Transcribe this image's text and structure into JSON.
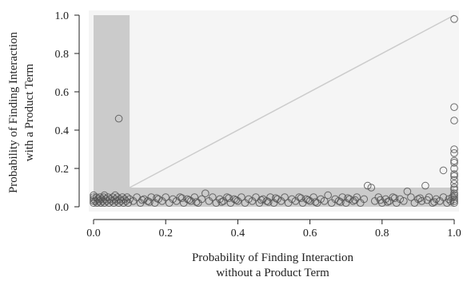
{
  "chart_data": {
    "type": "scatter",
    "xlabel_lines": [
      "Probability of Finding Interaction",
      "without a Product Term"
    ],
    "ylabel_lines": [
      "Probability of Finding Interaction",
      "with a Product Term"
    ],
    "xlim": [
      0,
      1
    ],
    "ylim": [
      0,
      1
    ],
    "x_ticks": [
      0.0,
      0.2,
      0.4,
      0.6,
      0.8,
      1.0
    ],
    "y_ticks": [
      0.0,
      0.2,
      0.4,
      0.6,
      0.8,
      1.0
    ],
    "x_tick_labels": [
      "0.0",
      "0.2",
      "0.4",
      "0.6",
      "0.8",
      "1.0"
    ],
    "y_tick_labels": [
      "0.0",
      "0.2",
      "0.4",
      "0.6",
      "0.8",
      "1.0"
    ],
    "grid": false,
    "shaded_regions": [
      {
        "x": [
          0,
          0.1
        ],
        "y": [
          0,
          1
        ]
      },
      {
        "x": [
          0,
          1
        ],
        "y": [
          0,
          0.1
        ]
      }
    ],
    "reference_line": {
      "from": [
        0.1,
        0.1
      ],
      "to": [
        1.0,
        1.0
      ]
    },
    "colors": {
      "points": "#555555",
      "shading": "#cbcbcb",
      "reference_line": "#cccccc",
      "axis": "#222222"
    },
    "points": [
      [
        0.07,
        0.46
      ],
      [
        1.0,
        0.98
      ],
      [
        1.0,
        0.52
      ],
      [
        1.0,
        0.45
      ],
      [
        1.0,
        0.3
      ],
      [
        1.0,
        0.28
      ],
      [
        1.0,
        0.24
      ],
      [
        1.0,
        0.23
      ],
      [
        1.0,
        0.2
      ],
      [
        1.0,
        0.17
      ],
      [
        1.0,
        0.16
      ],
      [
        1.0,
        0.14
      ],
      [
        1.0,
        0.12
      ],
      [
        1.0,
        0.1
      ],
      [
        1.0,
        0.09
      ],
      [
        0.97,
        0.19
      ],
      [
        0.92,
        0.11
      ],
      [
        0.87,
        0.08
      ],
      [
        0.76,
        0.11
      ],
      [
        0.77,
        0.1
      ],
      [
        0.65,
        0.06
      ],
      [
        0.31,
        0.07
      ],
      [
        0.06,
        0.06
      ],
      [
        0.03,
        0.06
      ],
      [
        0.0,
        0.02
      ],
      [
        0.0,
        0.03
      ],
      [
        0.0,
        0.04
      ],
      [
        0.0,
        0.05
      ],
      [
        0.0,
        0.06
      ],
      [
        0.005,
        0.03
      ],
      [
        0.008,
        0.05
      ],
      [
        0.01,
        0.02
      ],
      [
        0.012,
        0.04
      ],
      [
        0.015,
        0.03
      ],
      [
        0.018,
        0.05
      ],
      [
        0.02,
        0.02
      ],
      [
        0.022,
        0.04
      ],
      [
        0.025,
        0.03
      ],
      [
        0.028,
        0.05
      ],
      [
        0.03,
        0.02
      ],
      [
        0.033,
        0.04
      ],
      [
        0.036,
        0.03
      ],
      [
        0.04,
        0.05
      ],
      [
        0.043,
        0.02
      ],
      [
        0.046,
        0.04
      ],
      [
        0.05,
        0.03
      ],
      [
        0.053,
        0.05
      ],
      [
        0.056,
        0.02
      ],
      [
        0.06,
        0.04
      ],
      [
        0.063,
        0.03
      ],
      [
        0.066,
        0.05
      ],
      [
        0.07,
        0.02
      ],
      [
        0.073,
        0.04
      ],
      [
        0.076,
        0.03
      ],
      [
        0.08,
        0.05
      ],
      [
        0.083,
        0.02
      ],
      [
        0.086,
        0.04
      ],
      [
        0.09,
        0.03
      ],
      [
        0.093,
        0.05
      ],
      [
        0.096,
        0.02
      ],
      [
        0.1,
        0.04
      ],
      [
        0.11,
        0.03
      ],
      [
        0.12,
        0.05
      ],
      [
        0.13,
        0.02
      ],
      [
        0.14,
        0.04
      ],
      [
        0.15,
        0.03
      ],
      [
        0.16,
        0.05
      ],
      [
        0.17,
        0.02
      ],
      [
        0.18,
        0.04
      ],
      [
        0.19,
        0.03
      ],
      [
        0.2,
        0.05
      ],
      [
        0.21,
        0.02
      ],
      [
        0.22,
        0.04
      ],
      [
        0.23,
        0.03
      ],
      [
        0.24,
        0.05
      ],
      [
        0.25,
        0.02
      ],
      [
        0.26,
        0.04
      ],
      [
        0.27,
        0.03
      ],
      [
        0.28,
        0.05
      ],
      [
        0.29,
        0.02
      ],
      [
        0.3,
        0.04
      ],
      [
        0.32,
        0.03
      ],
      [
        0.33,
        0.05
      ],
      [
        0.34,
        0.02
      ],
      [
        0.35,
        0.04
      ],
      [
        0.36,
        0.03
      ],
      [
        0.37,
        0.05
      ],
      [
        0.38,
        0.02
      ],
      [
        0.39,
        0.04
      ],
      [
        0.4,
        0.03
      ],
      [
        0.41,
        0.05
      ],
      [
        0.42,
        0.02
      ],
      [
        0.43,
        0.04
      ],
      [
        0.44,
        0.03
      ],
      [
        0.45,
        0.05
      ],
      [
        0.46,
        0.02
      ],
      [
        0.47,
        0.04
      ],
      [
        0.48,
        0.03
      ],
      [
        0.49,
        0.05
      ],
      [
        0.5,
        0.02
      ],
      [
        0.51,
        0.04
      ],
      [
        0.52,
        0.03
      ],
      [
        0.53,
        0.05
      ],
      [
        0.54,
        0.02
      ],
      [
        0.55,
        0.04
      ],
      [
        0.56,
        0.03
      ],
      [
        0.57,
        0.05
      ],
      [
        0.58,
        0.02
      ],
      [
        0.59,
        0.04
      ],
      [
        0.6,
        0.03
      ],
      [
        0.61,
        0.05
      ],
      [
        0.62,
        0.02
      ],
      [
        0.63,
        0.04
      ],
      [
        0.64,
        0.03
      ],
      [
        0.66,
        0.02
      ],
      [
        0.67,
        0.04
      ],
      [
        0.68,
        0.03
      ],
      [
        0.69,
        0.05
      ],
      [
        0.7,
        0.02
      ],
      [
        0.71,
        0.04
      ],
      [
        0.72,
        0.03
      ],
      [
        0.73,
        0.05
      ],
      [
        0.74,
        0.02
      ],
      [
        0.75,
        0.04
      ],
      [
        0.78,
        0.03
      ],
      [
        0.79,
        0.05
      ],
      [
        0.8,
        0.02
      ],
      [
        0.81,
        0.04
      ],
      [
        0.82,
        0.03
      ],
      [
        0.83,
        0.05
      ],
      [
        0.84,
        0.02
      ],
      [
        0.85,
        0.04
      ],
      [
        0.86,
        0.03
      ],
      [
        0.88,
        0.05
      ],
      [
        0.89,
        0.02
      ],
      [
        0.9,
        0.04
      ],
      [
        0.91,
        0.03
      ],
      [
        0.93,
        0.05
      ],
      [
        0.94,
        0.02
      ],
      [
        0.95,
        0.04
      ],
      [
        0.96,
        0.03
      ],
      [
        0.97,
        0.05
      ],
      [
        0.98,
        0.02
      ],
      [
        0.985,
        0.04
      ],
      [
        0.99,
        0.03
      ],
      [
        0.995,
        0.05
      ],
      [
        1.0,
        0.02
      ],
      [
        1.0,
        0.03
      ],
      [
        1.0,
        0.04
      ],
      [
        1.0,
        0.05
      ],
      [
        1.0,
        0.06
      ],
      [
        1.0,
        0.07
      ],
      [
        0.135,
        0.035
      ],
      [
        0.245,
        0.045
      ],
      [
        0.355,
        0.025
      ],
      [
        0.465,
        0.035
      ],
      [
        0.575,
        0.045
      ],
      [
        0.685,
        0.025
      ],
      [
        0.795,
        0.035
      ],
      [
        0.905,
        0.045
      ],
      [
        0.155,
        0.025
      ],
      [
        0.265,
        0.035
      ],
      [
        0.375,
        0.045
      ],
      [
        0.485,
        0.025
      ],
      [
        0.595,
        0.035
      ],
      [
        0.705,
        0.045
      ],
      [
        0.815,
        0.025
      ],
      [
        0.925,
        0.035
      ],
      [
        0.175,
        0.045
      ],
      [
        0.285,
        0.025
      ],
      [
        0.395,
        0.035
      ],
      [
        0.505,
        0.045
      ],
      [
        0.615,
        0.025
      ],
      [
        0.725,
        0.035
      ],
      [
        0.835,
        0.045
      ],
      [
        0.945,
        0.025
      ]
    ]
  }
}
